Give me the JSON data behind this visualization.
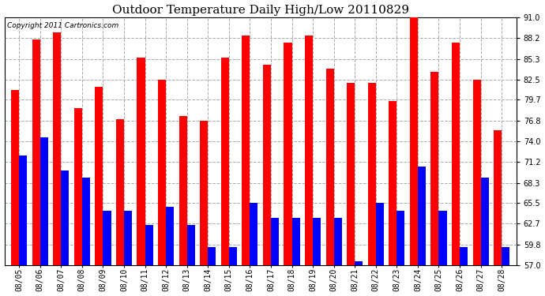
{
  "title": "Outdoor Temperature Daily High/Low 20110829",
  "copyright": "Copyright 2011 Cartronics.com",
  "dates": [
    "08/05",
    "08/06",
    "08/07",
    "08/08",
    "08/09",
    "08/10",
    "08/11",
    "08/12",
    "08/13",
    "08/14",
    "08/15",
    "08/16",
    "08/17",
    "08/18",
    "08/19",
    "08/20",
    "08/21",
    "08/22",
    "08/23",
    "08/24",
    "08/25",
    "08/26",
    "08/27",
    "08/28"
  ],
  "highs": [
    81.0,
    88.0,
    89.0,
    78.5,
    81.5,
    77.0,
    85.5,
    82.5,
    77.5,
    76.8,
    85.5,
    88.5,
    84.5,
    87.5,
    88.5,
    84.0,
    82.0,
    82.0,
    79.5,
    91.0,
    83.5,
    87.5,
    82.5,
    75.5
  ],
  "lows": [
    72.0,
    74.5,
    70.0,
    69.0,
    64.5,
    64.5,
    62.5,
    65.0,
    62.5,
    59.5,
    59.5,
    65.5,
    63.5,
    63.5,
    63.5,
    63.5,
    57.5,
    65.5,
    64.5,
    70.5,
    64.5,
    59.5,
    69.0,
    59.5
  ],
  "high_color": "#ff0000",
  "low_color": "#0000ff",
  "bg_color": "#ffffff",
  "plot_bg_color": "#ffffff",
  "grid_color": "#aaaaaa",
  "yticks": [
    57.0,
    59.8,
    62.7,
    65.5,
    68.3,
    71.2,
    74.0,
    76.8,
    79.7,
    82.5,
    85.3,
    88.2,
    91.0
  ],
  "ymin": 57.0,
  "ymax": 91.0,
  "bar_bottom": 57.0,
  "title_fontsize": 11,
  "copyright_fontsize": 6.5,
  "tick_fontsize": 7,
  "bar_width": 0.38
}
